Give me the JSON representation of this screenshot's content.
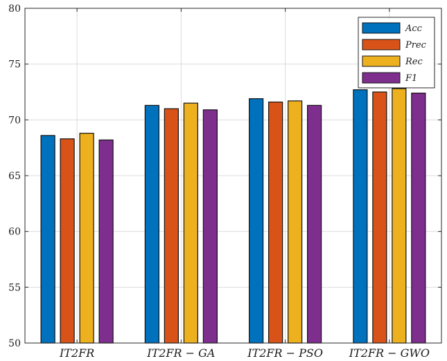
{
  "chart_data": {
    "type": "bar",
    "categories": [
      "IT2FR",
      "IT2FR − GA",
      "IT2FR − PSO",
      "IT2FR − GWO"
    ],
    "series": [
      {
        "name": "Acc",
        "color": "#0072BD",
        "values": [
          68.6,
          71.3,
          71.9,
          72.7
        ]
      },
      {
        "name": "Prec",
        "color": "#D95319",
        "values": [
          68.3,
          71.0,
          71.6,
          72.5
        ]
      },
      {
        "name": "Rec",
        "color": "#EDB120",
        "values": [
          68.8,
          71.5,
          71.7,
          72.8
        ]
      },
      {
        "name": "F1",
        "color": "#7E2F8E",
        "values": [
          68.2,
          70.9,
          71.3,
          72.4
        ]
      }
    ],
    "ylim": [
      50,
      80
    ],
    "yticks": [
      50,
      55,
      60,
      65,
      70,
      75,
      80
    ],
    "grid": true,
    "legend_position": "top-right",
    "title": "",
    "xlabel": "",
    "ylabel": ""
  }
}
